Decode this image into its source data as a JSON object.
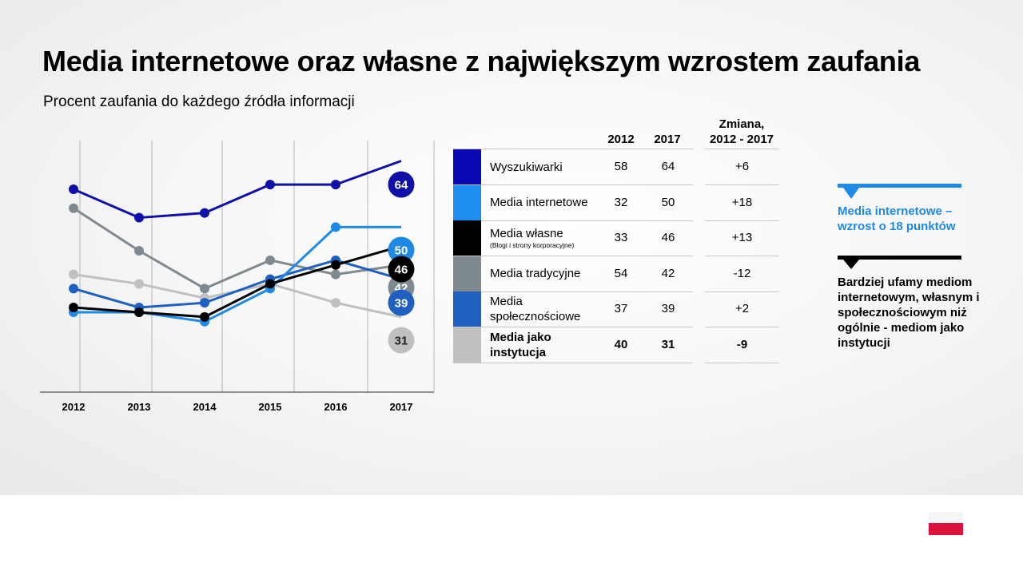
{
  "title": "Media internetowe oraz własne z największym wzrostem zaufania",
  "subtitle": "Procent zaufania do każdego źródła informacji",
  "chart_data": {
    "type": "line",
    "title": "Media internetowe oraz własne z największym wzrostem zaufania",
    "subtitle": "Procent zaufania do każdego źródła informacji",
    "xlabel": "",
    "ylabel": "",
    "ylim": [
      20,
      70
    ],
    "x": [
      "2012",
      "2013",
      "2014",
      "2015",
      "2016",
      "2017"
    ],
    "series": [
      {
        "name": "Wyszukiwarki",
        "color": "#1010a8",
        "values": [
          58,
          52,
          53,
          59,
          59,
          64
        ]
      },
      {
        "name": "Media tradycyjne",
        "color": "#7f8a90",
        "values": [
          54,
          45,
          37,
          43,
          40,
          42
        ]
      },
      {
        "name": "Media jako instytucja",
        "color": "#c0c0c0",
        "values": [
          40,
          38,
          35,
          38,
          34,
          31
        ]
      },
      {
        "name": "Media społecznościowe",
        "color": "#1f5fc0",
        "values": [
          37,
          33,
          34,
          39,
          43,
          39
        ]
      },
      {
        "name": "Media internetowe",
        "color": "#1e8ae6",
        "values": [
          32,
          32,
          30,
          37,
          50,
          50
        ]
      },
      {
        "name": "Media własne",
        "color": "#000000",
        "values": [
          33,
          32,
          31,
          38,
          42,
          46
        ]
      }
    ],
    "end_labels": [
      {
        "series": "Wyszukiwarki",
        "text": "64",
        "dot": "#1010a8",
        "text_color": "#ffffff"
      },
      {
        "series": "Media internetowe",
        "text": "50",
        "dot": "#1e8ae6",
        "text_color": "#ffffff"
      },
      {
        "series": "Media własne",
        "text": "46",
        "dot": "#000000",
        "text_color": "#ffffff"
      },
      {
        "series": "Media tradycyjne",
        "text": "42",
        "dot": "#7f8a90",
        "text_color": "#ffffff"
      },
      {
        "series": "Media społecznościowe",
        "text": "39",
        "dot": "#1f5fc0",
        "text_color": "#ffffff"
      },
      {
        "series": "Media jako instytucja",
        "text": "31",
        "dot": "#c0c0c0",
        "text_color": "#222222"
      }
    ]
  },
  "table": {
    "col_2012": "2012",
    "col_2017": "2017",
    "col_change_line1": "Zmiana,",
    "col_change_line2": "2012 - 2017",
    "rows": [
      {
        "label": "Wyszukiwarki",
        "sub": "",
        "v2012": "58",
        "v2017": "64",
        "change": "+6",
        "color": "#0a0ab4"
      },
      {
        "label": "Media internetowe",
        "sub": "",
        "v2012": "32",
        "v2017": "50",
        "change": "+18",
        "color": "#1c8ef0"
      },
      {
        "label": "Media własne",
        "sub": "(Blogi i strony korporacyjne)",
        "v2012": "33",
        "v2017": "46",
        "change": "+13",
        "color": "#000000"
      },
      {
        "label": "Media tradycyjne",
        "sub": "",
        "v2012": "54",
        "v2017": "42",
        "change": "-12",
        "color": "#7f8a90"
      },
      {
        "label": "Media społecznościowe",
        "sub": "",
        "v2012": "37",
        "v2017": "39",
        "change": "+2",
        "color": "#1f5fc0"
      },
      {
        "label": "Media jako instytucja",
        "sub": "",
        "v2012": "40",
        "v2017": "31",
        "change": "-9",
        "color": "#c0c0c0"
      }
    ]
  },
  "callouts": [
    {
      "text": "Media internetowe – wzrost o 18 punktów",
      "color": "#1e8ae6"
    },
    {
      "text": "Bardziej ufamy mediom internetowym, własnym i społecznościowym niż ogólnie - mediom jako instytucji",
      "color": "#000000"
    }
  ],
  "flag": {
    "name": "Poland",
    "top_color": "#f5f5f5",
    "bottom_color": "#dc143c"
  }
}
